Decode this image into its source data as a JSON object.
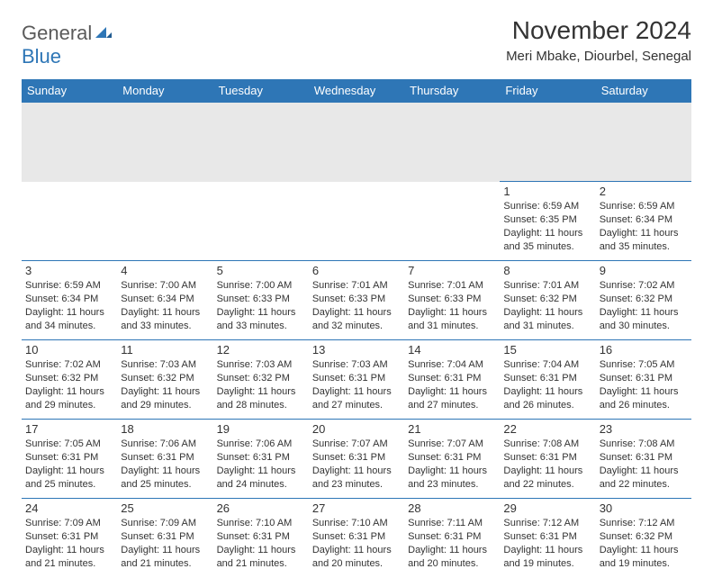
{
  "logo": {
    "word1": "General",
    "word2": "Blue",
    "word1_color": "#5a5a5a",
    "word2_color": "#2e76b6",
    "icon_color": "#2e76b6"
  },
  "title": "November 2024",
  "location": "Meri Mbake, Diourbel, Senegal",
  "colors": {
    "header_bg": "#2e76b6",
    "header_text": "#ffffff",
    "border": "#2e76b6",
    "spacer_bg": "#e8e8e8",
    "text": "#333333",
    "background": "#ffffff"
  },
  "typography": {
    "title_fontsize": 28,
    "location_fontsize": 15,
    "dayheader_fontsize": 13,
    "daynum_fontsize": 13,
    "info_fontsize": 11
  },
  "day_headers": [
    "Sunday",
    "Monday",
    "Tuesday",
    "Wednesday",
    "Thursday",
    "Friday",
    "Saturday"
  ],
  "weeks": [
    [
      null,
      null,
      null,
      null,
      null,
      {
        "n": "1",
        "sunrise": "Sunrise: 6:59 AM",
        "sunset": "Sunset: 6:35 PM",
        "daylight": "Daylight: 11 hours and 35 minutes."
      },
      {
        "n": "2",
        "sunrise": "Sunrise: 6:59 AM",
        "sunset": "Sunset: 6:34 PM",
        "daylight": "Daylight: 11 hours and 35 minutes."
      }
    ],
    [
      {
        "n": "3",
        "sunrise": "Sunrise: 6:59 AM",
        "sunset": "Sunset: 6:34 PM",
        "daylight": "Daylight: 11 hours and 34 minutes."
      },
      {
        "n": "4",
        "sunrise": "Sunrise: 7:00 AM",
        "sunset": "Sunset: 6:34 PM",
        "daylight": "Daylight: 11 hours and 33 minutes."
      },
      {
        "n": "5",
        "sunrise": "Sunrise: 7:00 AM",
        "sunset": "Sunset: 6:33 PM",
        "daylight": "Daylight: 11 hours and 33 minutes."
      },
      {
        "n": "6",
        "sunrise": "Sunrise: 7:01 AM",
        "sunset": "Sunset: 6:33 PM",
        "daylight": "Daylight: 11 hours and 32 minutes."
      },
      {
        "n": "7",
        "sunrise": "Sunrise: 7:01 AM",
        "sunset": "Sunset: 6:33 PM",
        "daylight": "Daylight: 11 hours and 31 minutes."
      },
      {
        "n": "8",
        "sunrise": "Sunrise: 7:01 AM",
        "sunset": "Sunset: 6:32 PM",
        "daylight": "Daylight: 11 hours and 31 minutes."
      },
      {
        "n": "9",
        "sunrise": "Sunrise: 7:02 AM",
        "sunset": "Sunset: 6:32 PM",
        "daylight": "Daylight: 11 hours and 30 minutes."
      }
    ],
    [
      {
        "n": "10",
        "sunrise": "Sunrise: 7:02 AM",
        "sunset": "Sunset: 6:32 PM",
        "daylight": "Daylight: 11 hours and 29 minutes."
      },
      {
        "n": "11",
        "sunrise": "Sunrise: 7:03 AM",
        "sunset": "Sunset: 6:32 PM",
        "daylight": "Daylight: 11 hours and 29 minutes."
      },
      {
        "n": "12",
        "sunrise": "Sunrise: 7:03 AM",
        "sunset": "Sunset: 6:32 PM",
        "daylight": "Daylight: 11 hours and 28 minutes."
      },
      {
        "n": "13",
        "sunrise": "Sunrise: 7:03 AM",
        "sunset": "Sunset: 6:31 PM",
        "daylight": "Daylight: 11 hours and 27 minutes."
      },
      {
        "n": "14",
        "sunrise": "Sunrise: 7:04 AM",
        "sunset": "Sunset: 6:31 PM",
        "daylight": "Daylight: 11 hours and 27 minutes."
      },
      {
        "n": "15",
        "sunrise": "Sunrise: 7:04 AM",
        "sunset": "Sunset: 6:31 PM",
        "daylight": "Daylight: 11 hours and 26 minutes."
      },
      {
        "n": "16",
        "sunrise": "Sunrise: 7:05 AM",
        "sunset": "Sunset: 6:31 PM",
        "daylight": "Daylight: 11 hours and 26 minutes."
      }
    ],
    [
      {
        "n": "17",
        "sunrise": "Sunrise: 7:05 AM",
        "sunset": "Sunset: 6:31 PM",
        "daylight": "Daylight: 11 hours and 25 minutes."
      },
      {
        "n": "18",
        "sunrise": "Sunrise: 7:06 AM",
        "sunset": "Sunset: 6:31 PM",
        "daylight": "Daylight: 11 hours and 25 minutes."
      },
      {
        "n": "19",
        "sunrise": "Sunrise: 7:06 AM",
        "sunset": "Sunset: 6:31 PM",
        "daylight": "Daylight: 11 hours and 24 minutes."
      },
      {
        "n": "20",
        "sunrise": "Sunrise: 7:07 AM",
        "sunset": "Sunset: 6:31 PM",
        "daylight": "Daylight: 11 hours and 23 minutes."
      },
      {
        "n": "21",
        "sunrise": "Sunrise: 7:07 AM",
        "sunset": "Sunset: 6:31 PM",
        "daylight": "Daylight: 11 hours and 23 minutes."
      },
      {
        "n": "22",
        "sunrise": "Sunrise: 7:08 AM",
        "sunset": "Sunset: 6:31 PM",
        "daylight": "Daylight: 11 hours and 22 minutes."
      },
      {
        "n": "23",
        "sunrise": "Sunrise: 7:08 AM",
        "sunset": "Sunset: 6:31 PM",
        "daylight": "Daylight: 11 hours and 22 minutes."
      }
    ],
    [
      {
        "n": "24",
        "sunrise": "Sunrise: 7:09 AM",
        "sunset": "Sunset: 6:31 PM",
        "daylight": "Daylight: 11 hours and 21 minutes."
      },
      {
        "n": "25",
        "sunrise": "Sunrise: 7:09 AM",
        "sunset": "Sunset: 6:31 PM",
        "daylight": "Daylight: 11 hours and 21 minutes."
      },
      {
        "n": "26",
        "sunrise": "Sunrise: 7:10 AM",
        "sunset": "Sunset: 6:31 PM",
        "daylight": "Daylight: 11 hours and 21 minutes."
      },
      {
        "n": "27",
        "sunrise": "Sunrise: 7:10 AM",
        "sunset": "Sunset: 6:31 PM",
        "daylight": "Daylight: 11 hours and 20 minutes."
      },
      {
        "n": "28",
        "sunrise": "Sunrise: 7:11 AM",
        "sunset": "Sunset: 6:31 PM",
        "daylight": "Daylight: 11 hours and 20 minutes."
      },
      {
        "n": "29",
        "sunrise": "Sunrise: 7:12 AM",
        "sunset": "Sunset: 6:31 PM",
        "daylight": "Daylight: 11 hours and 19 minutes."
      },
      {
        "n": "30",
        "sunrise": "Sunrise: 7:12 AM",
        "sunset": "Sunset: 6:32 PM",
        "daylight": "Daylight: 11 hours and 19 minutes."
      }
    ]
  ]
}
